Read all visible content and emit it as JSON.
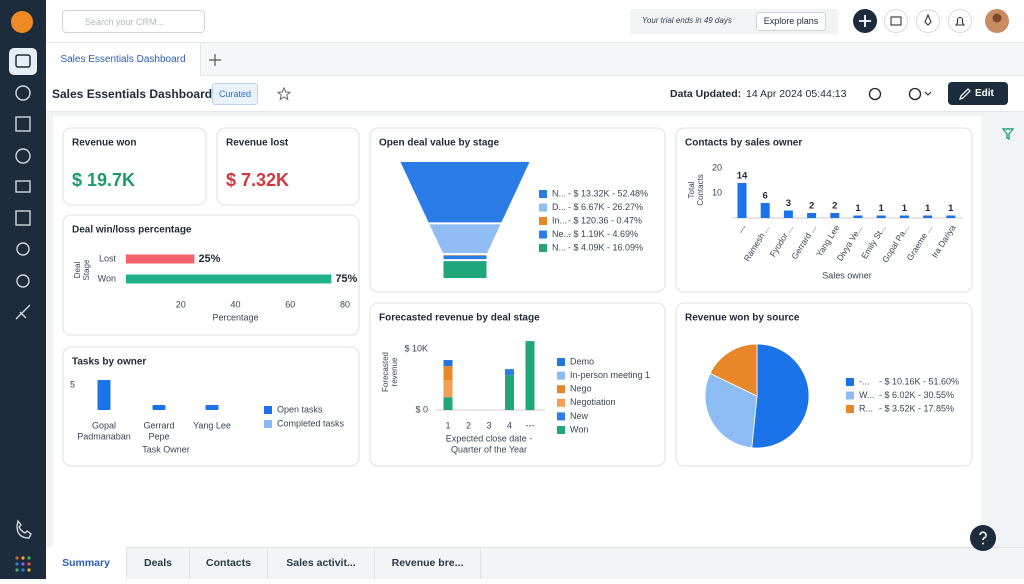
{
  "topbar": {
    "search_placeholder": "Search your CRM...",
    "trial_text": "Your trial ends in 49 days",
    "explore_button": "Explore plans"
  },
  "tabs": {
    "active": "Sales Essentials Dashboard"
  },
  "header": {
    "title": "Sales Essentials Dashboard",
    "badge": "Curated",
    "updated_label": "Data Updated:",
    "updated_value": "14 Apr 2024 05:44:13",
    "edit_button": "Edit"
  },
  "widgets": {
    "revenue_won": {
      "title": "Revenue won",
      "value": "$ 19.7K",
      "color": "#1a9a6c"
    },
    "revenue_lost": {
      "title": "Revenue lost",
      "value": "$ 7.32K",
      "color": "#d0393f"
    },
    "deal_win_loss": {
      "title": "Deal win/loss percentage",
      "type": "hbar",
      "y_label": [
        "Deal",
        "Stage"
      ],
      "x_label": "Percentage",
      "categories": [
        "Lost",
        "Won"
      ],
      "values": [
        25,
        75
      ],
      "value_labels": [
        "25%",
        "75%"
      ],
      "colors": [
        "#f4606c",
        "#20b08a"
      ],
      "xlim": [
        0,
        80
      ],
      "xticks": [
        20,
        40,
        60,
        80
      ]
    },
    "tasks_by_owner": {
      "title": "Tasks by owner",
      "type": "bar",
      "x_label": "Task Owner",
      "categories": [
        [
          "Gopal",
          "Padmanaban"
        ],
        [
          "Gerrard",
          "Pepe"
        ],
        [
          "Yang Lee"
        ]
      ],
      "series": [
        {
          "name": "Open tasks",
          "color": "#1a73e8",
          "values": [
            6,
            1,
            1
          ]
        },
        {
          "name": "Completed tasks",
          "color": "#8ab8f0",
          "values": [
            0,
            0,
            0
          ]
        }
      ],
      "ylim": [
        0,
        7
      ],
      "yticks": [
        5
      ]
    },
    "open_deal_value": {
      "title": "Open deal value by stage",
      "type": "funnel",
      "categories": [
        "N...",
        "D...",
        "In...",
        "Ne...",
        "N..."
      ],
      "values": [
        52.48,
        26.27,
        0.47,
        4.69,
        16.09
      ],
      "value_labels": [
        "- $ 13.32K - 52.48%",
        "- $ 6.67K - 26.27%",
        "- $ 120.36 - 0.47%",
        "- $ 1.19K - 4.69%",
        "- $ 4.09K - 16.09%"
      ],
      "colors": [
        "#2a7be6",
        "#8fbcf3",
        "#e8872a",
        "#2b7de9",
        "#1fa67a"
      ]
    },
    "contacts_by_owner": {
      "title": "Contacts by sales owner",
      "type": "bar",
      "y_label": [
        "Total",
        "Contacts"
      ],
      "x_label": "Sales owner",
      "categories": [
        "---",
        "Ramesh ...",
        "Fyodor ...",
        "Gerrard ...",
        "Yang Lee",
        "Divya Ve...",
        "Emily St...",
        "Gopal Pa...",
        "Graeme ...",
        "Ira Dariya"
      ],
      "values": [
        14,
        6,
        3,
        2,
        2,
        1,
        1,
        1,
        1,
        1
      ],
      "color": "#1a73e8",
      "ylim": [
        0,
        22
      ],
      "yticks": [
        10,
        20
      ]
    },
    "forecasted_revenue": {
      "title": "Forecasted revenue by deal stage",
      "type": "stacked_bar",
      "y_label": [
        "Forecasted",
        "revenue"
      ],
      "x_label": [
        "Expected close date -",
        "Quarter of the Year"
      ],
      "categories": [
        "1",
        "2",
        "3",
        "4",
        "---"
      ],
      "series": [
        {
          "name": "Demo",
          "color": "#2176e0",
          "values": [
            1000,
            0,
            0,
            0,
            0
          ]
        },
        {
          "name": "In-person meeting 1",
          "color": "#8cbcf2",
          "values": [
            0,
            0,
            0,
            0,
            0
          ]
        },
        {
          "name": "Nego",
          "color": "#e8862a",
          "values": [
            2300,
            0,
            0,
            0,
            0
          ]
        },
        {
          "name": "Negotiation",
          "color": "#f2a055",
          "values": [
            2800,
            0,
            0,
            0,
            0
          ]
        },
        {
          "name": "New",
          "color": "#2b7de9",
          "values": [
            0,
            0,
            0,
            1000,
            0
          ]
        },
        {
          "name": "Won",
          "color": "#1fa67a",
          "values": [
            2100,
            0,
            0,
            5700,
            11300
          ]
        }
      ],
      "ylim": [
        0,
        12000
      ],
      "yticks": [
        {
          "value": 0,
          "label": "$ 0"
        },
        {
          "value": 10000,
          "label": "$ 10K"
        }
      ]
    },
    "revenue_by_source": {
      "title": "Revenue won by source",
      "type": "pie",
      "categories": [
        "-...",
        "W...",
        "R..."
      ],
      "values": [
        51.6,
        30.55,
        17.85
      ],
      "value_labels": [
        "- $ 10.16K - 51.60%",
        "- $ 6.02K - 30.55%",
        "- $ 3.52K - 17.85%"
      ],
      "colors": [
        "#1a73e8",
        "#8cbcf2",
        "#e8862a"
      ]
    }
  },
  "bottom_tabs": [
    "Summary",
    "Deals",
    "Contacts",
    "Sales activit...",
    "Revenue bre..."
  ]
}
